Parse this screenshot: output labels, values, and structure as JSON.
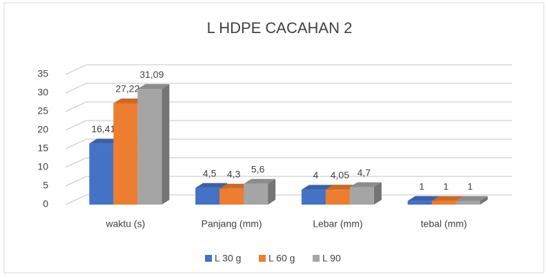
{
  "chart_data": {
    "type": "bar",
    "title": "L HDPE CACAHAN 2",
    "categories": [
      "waktu (s)",
      "Panjang (mm)",
      "Lebar (mm)",
      "tebal (mm)"
    ],
    "series": [
      {
        "name": "L 30 g",
        "color": "#4472c4",
        "values": [
          16.41,
          4.5,
          4,
          1
        ],
        "value_labels": [
          "16,41",
          "4,5",
          "4",
          "1"
        ]
      },
      {
        "name": "L 60 g",
        "color": "#ed7d31",
        "values": [
          27.22,
          4.3,
          4.05,
          1
        ],
        "value_labels": [
          "27,22",
          "4,3",
          "4,05",
          "1"
        ]
      },
      {
        "name": "L 90",
        "color": "#a5a5a5",
        "values": [
          31.09,
          5.6,
          4.7,
          1
        ],
        "value_labels": [
          "31,09",
          "5,6",
          "4,7",
          "1"
        ]
      }
    ],
    "ylim": [
      0,
      35
    ],
    "yticks": [
      0,
      5,
      10,
      15,
      20,
      25,
      30,
      35
    ],
    "grid": true,
    "legend": "bottom"
  }
}
